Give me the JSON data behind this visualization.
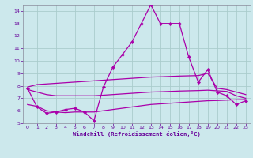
{
  "background_color": "#cce8ec",
  "grid_color": "#aacccc",
  "line_color": "#aa00aa",
  "xlabel": "Windchill (Refroidissement éolien,°C)",
  "xlabel_color": "#660099",
  "tick_color": "#660099",
  "ylim": [
    5,
    14.5
  ],
  "xlim": [
    -0.5,
    23.5
  ],
  "yticks": [
    5,
    6,
    7,
    8,
    9,
    10,
    11,
    12,
    13,
    14
  ],
  "xticks": [
    0,
    1,
    2,
    3,
    4,
    5,
    6,
    7,
    8,
    9,
    10,
    11,
    12,
    13,
    14,
    15,
    16,
    17,
    18,
    19,
    20,
    21,
    22,
    23
  ],
  "s_main": [
    7.8,
    6.3,
    5.8,
    5.9,
    6.1,
    6.2,
    5.9,
    5.2,
    7.9,
    9.5,
    10.5,
    11.5,
    13.0,
    14.5,
    13.0,
    13.0,
    13.0,
    10.3,
    8.3,
    9.3,
    7.5,
    7.2,
    6.5,
    6.8
  ],
  "s_lower": [
    6.5,
    6.35,
    6.0,
    5.9,
    5.85,
    5.9,
    5.9,
    5.9,
    6.0,
    6.1,
    6.2,
    6.3,
    6.4,
    6.5,
    6.55,
    6.6,
    6.65,
    6.7,
    6.75,
    6.8,
    6.82,
    6.85,
    6.88,
    6.9
  ],
  "s_middle": [
    7.7,
    7.5,
    7.3,
    7.2,
    7.2,
    7.2,
    7.2,
    7.2,
    7.25,
    7.3,
    7.35,
    7.4,
    7.45,
    7.5,
    7.52,
    7.55,
    7.58,
    7.6,
    7.62,
    7.65,
    7.6,
    7.55,
    7.2,
    7.0
  ],
  "s_upper": [
    7.9,
    8.1,
    8.15,
    8.2,
    8.25,
    8.3,
    8.35,
    8.4,
    8.45,
    8.5,
    8.55,
    8.6,
    8.65,
    8.7,
    8.72,
    8.75,
    8.78,
    8.8,
    8.82,
    9.0,
    7.8,
    7.7,
    7.5,
    7.3
  ]
}
